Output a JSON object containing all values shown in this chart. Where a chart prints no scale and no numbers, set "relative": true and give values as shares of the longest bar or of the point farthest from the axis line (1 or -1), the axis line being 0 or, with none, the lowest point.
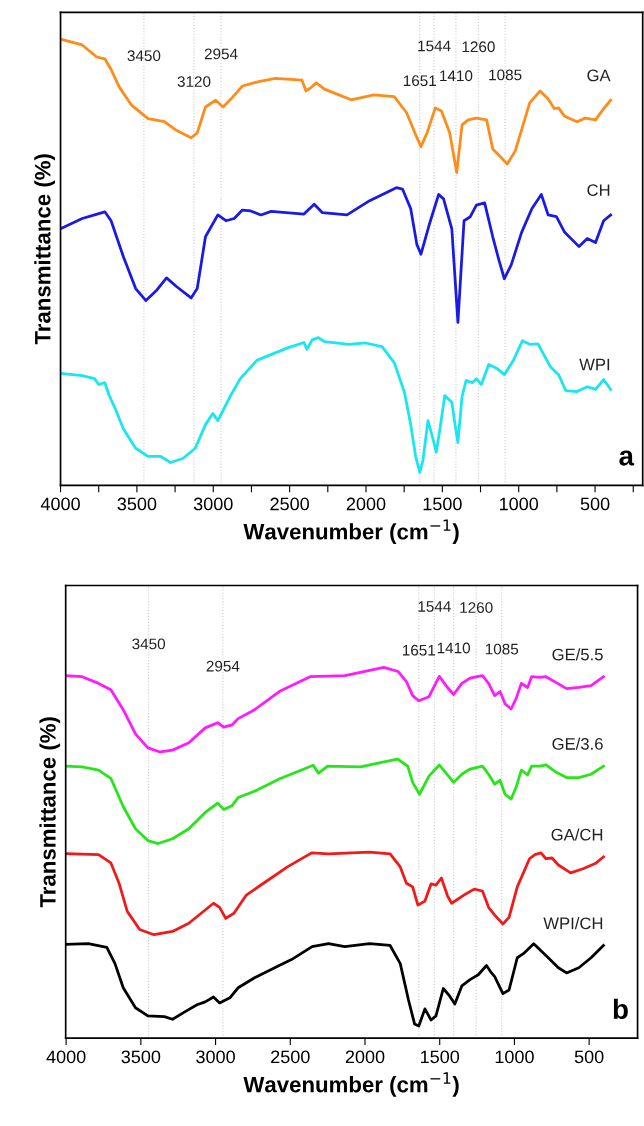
{
  "chart_data": [
    {
      "type": "line",
      "relative": true,
      "xlabel": "Wavenumber (cm$^{−1}$)",
      "ylabel": "Transmittance (%)",
      "tick_labels": "x",
      "xlim": [
        4000,
        188
      ],
      "xticks": [
        4000,
        {
          "value": 3750,
          "label": null
        },
        3500,
        {
          "value": 3250,
          "label": null
        },
        3000,
        {
          "value": 2750,
          "label": null
        },
        2500,
        {
          "value": 2250,
          "label": null
        },
        2000,
        {
          "value": 1750,
          "label": null
        },
        1500,
        {
          "value": 1250,
          "label": null
        },
        1000,
        {
          "value": 750,
          "label": null
        },
        500,
        {
          "value": 250,
          "label": null
        }
      ],
      "series": [
        {
          "name": "GA",
          "color": "#ff8c1a",
          "x": [
            4000,
            3858,
            3763,
            3710,
            3669,
            3616,
            3535,
            3427,
            3320,
            3239,
            3145,
            3105,
            3051,
            2984,
            2936,
            2876,
            2809,
            2702,
            2594,
            2419,
            2393,
            2366,
            2325,
            2272,
            2097,
            1949,
            1815,
            1734,
            1680,
            1640,
            1600,
            1546,
            1506,
            1452,
            1406,
            1371,
            1331,
            1277,
            1210,
            1170,
            1129,
            1075,
            1022,
            928,
            860,
            807,
            766,
            739,
            699,
            618,
            565,
            497,
            444,
            398
          ],
          "values": [
            1.0,
            0.987,
            0.96,
            0.956,
            0.932,
            0.893,
            0.852,
            0.822,
            0.815,
            0.795,
            0.779,
            0.79,
            0.848,
            0.863,
            0.848,
            0.869,
            0.895,
            0.905,
            0.912,
            0.908,
            0.884,
            0.89,
            0.902,
            0.888,
            0.864,
            0.875,
            0.871,
            0.835,
            0.79,
            0.759,
            0.79,
            0.846,
            0.839,
            0.79,
            0.701,
            0.808,
            0.819,
            0.823,
            0.819,
            0.754,
            0.74,
            0.72,
            0.75,
            0.857,
            0.884,
            0.866,
            0.844,
            0.846,
            0.827,
            0.815,
            0.823,
            0.819,
            0.844,
            0.863
          ]
        },
        {
          "name": "CH",
          "color": "#1a1ae6",
          "x": [
            4000,
            3858,
            3777,
            3710,
            3669,
            3589,
            3508,
            3441,
            3374,
            3306,
            3239,
            3145,
            3105,
            3051,
            2970,
            2917,
            2863,
            2809,
            2755,
            2688,
            2621,
            2406,
            2339,
            2285,
            2124,
            1976,
            1801,
            1761,
            1707,
            1667,
            1640,
            1586,
            1524,
            1492,
            1438,
            1398,
            1358,
            1317,
            1277,
            1223,
            1170,
            1129,
            1094,
            1049,
            981,
            914,
            852,
            807,
            753,
            699,
            605,
            551,
            497,
            444,
            398
          ],
          "values": [
            0.575,
            0.598,
            0.606,
            0.613,
            0.593,
            0.513,
            0.441,
            0.414,
            0.436,
            0.465,
            0.445,
            0.42,
            0.441,
            0.557,
            0.606,
            0.593,
            0.598,
            0.617,
            0.615,
            0.606,
            0.614,
            0.608,
            0.63,
            0.611,
            0.606,
            0.638,
            0.667,
            0.664,
            0.62,
            0.54,
            0.518,
            0.584,
            0.652,
            0.642,
            0.575,
            0.365,
            0.593,
            0.602,
            0.628,
            0.633,
            0.557,
            0.504,
            0.463,
            0.494,
            0.567,
            0.62,
            0.652,
            0.606,
            0.602,
            0.567,
            0.535,
            0.553,
            0.544,
            0.593,
            0.606
          ]
        },
        {
          "name": "WPI",
          "color": "#1ae6f0",
          "x": [
            4000,
            3858,
            3777,
            3750,
            3710,
            3683,
            3642,
            3589,
            3508,
            3427,
            3347,
            3280,
            3199,
            3118,
            3051,
            3003,
            2970,
            2890,
            2823,
            2715,
            2513,
            2406,
            2387,
            2352,
            2312,
            2272,
            2111,
            2003,
            1895,
            1815,
            1748,
            1707,
            1675,
            1648,
            1627,
            1594,
            1559,
            1540,
            1519,
            1484,
            1438,
            1417,
            1398,
            1371,
            1344,
            1304,
            1277,
            1245,
            1196,
            1143,
            1094,
            1035,
            976,
            928,
            874,
            793,
            739,
            691,
            618,
            551,
            497,
            444,
            398
          ],
          "values": [
            0.251,
            0.246,
            0.239,
            0.226,
            0.23,
            0.203,
            0.172,
            0.127,
            0.083,
            0.065,
            0.065,
            0.051,
            0.06,
            0.083,
            0.136,
            0.161,
            0.145,
            0.199,
            0.239,
            0.28,
            0.308,
            0.32,
            0.305,
            0.326,
            0.331,
            0.322,
            0.316,
            0.319,
            0.311,
            0.275,
            0.208,
            0.136,
            0.065,
            0.029,
            0.056,
            0.145,
            0.101,
            0.074,
            0.119,
            0.201,
            0.186,
            0.136,
            0.096,
            0.199,
            0.235,
            0.23,
            0.239,
            0.226,
            0.271,
            0.262,
            0.248,
            0.28,
            0.324,
            0.316,
            0.317,
            0.266,
            0.248,
            0.212,
            0.21,
            0.221,
            0.215,
            0.237,
            0.215
          ]
        }
      ],
      "ref_lines": [
        {
          "axis": "x",
          "value": 3454,
          "color": "#cccccc",
          "line_style": "dotted"
        },
        {
          "axis": "x",
          "value": 3126,
          "color": "#cccccc",
          "line_style": "dotted"
        },
        {
          "axis": "x",
          "value": 2949,
          "color": "#cccccc",
          "line_style": "dotted"
        },
        {
          "axis": "x",
          "value": 1648,
          "color": "#cccccc",
          "line_style": "dotted"
        },
        {
          "axis": "x",
          "value": 1554,
          "color": "#cccccc",
          "line_style": "dotted"
        },
        {
          "axis": "x",
          "value": 1411,
          "color": "#cccccc",
          "line_style": "dotted"
        },
        {
          "axis": "x",
          "value": 1264,
          "color": "#cccccc",
          "line_style": "dotted"
        },
        {
          "axis": "x",
          "value": 1089,
          "color": "#cccccc",
          "line_style": "dotted"
        }
      ],
      "annotations": [
        {
          "text": "3450",
          "x": 3454,
          "y": 0.96
        },
        {
          "text": "3120",
          "x": 3126,
          "y": 0.902
        },
        {
          "text": "2954",
          "x": 2949,
          "y": 0.964
        },
        {
          "text": "1651",
          "x": 1648,
          "y": 0.904
        },
        {
          "text": "1544",
          "x": 1554,
          "y": 0.982
        },
        {
          "text": "1410",
          "x": 1411,
          "y": 0.915
        },
        {
          "text": "1260",
          "x": 1264,
          "y": 0.98
        },
        {
          "text": "1085",
          "x": 1089,
          "y": 0.917
        },
        "a"
      ]
    },
    {
      "type": "line",
      "relative": true,
      "xlabel": "Wavenumber (cm$^{−1}$)",
      "ylabel": "Transmittance (%)",
      "tick_labels": "x",
      "xlim": [
        4003,
        176
      ],
      "xticks": [
        4000,
        3500,
        3000,
        2500,
        2000,
        1500,
        1000,
        500
      ],
      "series": [
        {
          "name": "GE/5.5",
          "color": "#ff1aff",
          "x": [
            4003,
            3893,
            3783,
            3701,
            3618,
            3536,
            3453,
            3371,
            3288,
            3179,
            3069,
            2986,
            2945,
            2890,
            2849,
            2739,
            2574,
            2368,
            2135,
            1874,
            1778,
            1723,
            1681,
            1640,
            1572,
            1503,
            1448,
            1407,
            1352,
            1297,
            1214,
            1173,
            1132,
            1096,
            1063,
            1022,
            987,
            954,
            912,
            885,
            830,
            789,
            720,
            651,
            569,
            487,
            404
          ],
          "values": [
            0.978,
            0.975,
            0.957,
            0.94,
            0.886,
            0.821,
            0.783,
            0.772,
            0.777,
            0.797,
            0.837,
            0.851,
            0.839,
            0.845,
            0.862,
            0.886,
            0.935,
            0.975,
            0.978,
            1.0,
            0.989,
            0.962,
            0.924,
            0.91,
            0.921,
            0.976,
            0.946,
            0.927,
            0.957,
            0.971,
            0.978,
            0.957,
            0.924,
            0.935,
            0.902,
            0.888,
            0.918,
            0.957,
            0.946,
            0.975,
            0.973,
            0.975,
            0.959,
            0.943,
            0.946,
            0.951,
            0.975
          ]
        },
        {
          "name": "GE/3.6",
          "color": "#26e61a",
          "x": [
            4003,
            3893,
            3783,
            3701,
            3618,
            3536,
            3453,
            3384,
            3288,
            3179,
            3069,
            2986,
            2945,
            2890,
            2849,
            2739,
            2574,
            2346,
            2311,
            2250,
            2030,
            1783,
            1714,
            1681,
            1635,
            1572,
            1503,
            1448,
            1407,
            1352,
            1297,
            1214,
            1173,
            1132,
            1096,
            1063,
            1022,
            987,
            954,
            912,
            885,
            830,
            789,
            720,
            651,
            569,
            487,
            404
          ],
          "values": [
            0.734,
            0.732,
            0.723,
            0.701,
            0.625,
            0.565,
            0.533,
            0.525,
            0.538,
            0.565,
            0.609,
            0.634,
            0.617,
            0.627,
            0.649,
            0.666,
            0.699,
            0.736,
            0.715,
            0.734,
            0.732,
            0.753,
            0.734,
            0.69,
            0.658,
            0.707,
            0.737,
            0.71,
            0.69,
            0.712,
            0.726,
            0.734,
            0.712,
            0.685,
            0.696,
            0.658,
            0.645,
            0.679,
            0.723,
            0.71,
            0.734,
            0.734,
            0.737,
            0.717,
            0.703,
            0.703,
            0.712,
            0.734
          ]
        },
        {
          "name": "GA/CH",
          "color": "#f01a1a",
          "x": [
            4003,
            3783,
            3701,
            3646,
            3591,
            3508,
            3412,
            3288,
            3179,
            3096,
            3014,
            2973,
            2932,
            2877,
            2794,
            2657,
            2519,
            2395,
            2354,
            2244,
            1970,
            1832,
            1764,
            1723,
            1681,
            1646,
            1599,
            1558,
            1525,
            1489,
            1448,
            1420,
            1338,
            1269,
            1214,
            1173,
            1132,
            1077,
            1036,
            981,
            899,
            863,
            822,
            789,
            748,
            706,
            624,
            541,
            459,
            404
          ],
          "values": [
            0.498,
            0.495,
            0.473,
            0.418,
            0.342,
            0.293,
            0.279,
            0.288,
            0.31,
            0.337,
            0.364,
            0.353,
            0.323,
            0.337,
            0.386,
            0.424,
            0.462,
            0.491,
            0.5,
            0.497,
            0.502,
            0.497,
            0.462,
            0.418,
            0.408,
            0.359,
            0.37,
            0.416,
            0.413,
            0.432,
            0.384,
            0.364,
            0.386,
            0.402,
            0.397,
            0.353,
            0.332,
            0.308,
            0.326,
            0.408,
            0.484,
            0.495,
            0.5,
            0.484,
            0.486,
            0.467,
            0.446,
            0.457,
            0.471,
            0.489
          ]
        },
        {
          "name": "WPI/CH",
          "color": "#000000",
          "x": [
            4003,
            3852,
            3728,
            3673,
            3618,
            3536,
            3453,
            3343,
            3288,
            3206,
            3124,
            3069,
            3014,
            2973,
            2904,
            2849,
            2739,
            2574,
            2492,
            2354,
            2244,
            2135,
            1970,
            1832,
            1764,
            1709,
            1668,
            1640,
            1599,
            1558,
            1525,
            1476,
            1434,
            1399,
            1352,
            1297,
            1242,
            1187,
            1159,
            1132,
            1077,
            1036,
            981,
            940,
            871,
            789,
            706,
            651,
            569,
            487,
            404
          ],
          "values": [
            0.253,
            0.255,
            0.245,
            0.201,
            0.136,
            0.082,
            0.06,
            0.058,
            0.051,
            0.071,
            0.09,
            0.098,
            0.111,
            0.095,
            0.109,
            0.136,
            0.163,
            0.196,
            0.212,
            0.247,
            0.255,
            0.247,
            0.255,
            0.25,
            0.201,
            0.103,
            0.038,
            0.033,
            0.079,
            0.049,
            0.06,
            0.134,
            0.114,
            0.092,
            0.141,
            0.158,
            0.171,
            0.196,
            0.179,
            0.166,
            0.12,
            0.13,
            0.217,
            0.228,
            0.255,
            0.223,
            0.19,
            0.176,
            0.19,
            0.217,
            0.25
          ]
        }
      ],
      "ref_lines": [
        {
          "axis": "x",
          "value": 3448,
          "color": "#cccccc",
          "line_style": "dotted"
        },
        {
          "axis": "x",
          "value": 2951,
          "color": "#cccccc",
          "line_style": "dotted"
        },
        {
          "axis": "x",
          "value": 1640,
          "color": "#cccccc",
          "line_style": "dotted"
        },
        {
          "axis": "x",
          "value": 1536,
          "color": "#cccccc",
          "line_style": "dotted"
        },
        {
          "axis": "x",
          "value": 1407,
          "color": "#cccccc",
          "line_style": "dotted"
        },
        {
          "axis": "x",
          "value": 1256,
          "color": "#cccccc",
          "line_style": "dotted"
        },
        {
          "axis": "x",
          "value": 1085,
          "color": "#cccccc",
          "line_style": "dotted"
        }
      ],
      "annotations": [
        {
          "text": "3450",
          "x": 3448,
          "y": 1.06
        },
        {
          "text": "2954",
          "x": 2951,
          "y": 1.0
        },
        {
          "text": "1651",
          "x": 1640,
          "y": 1.043
        },
        {
          "text": "1544",
          "x": 1536,
          "y": 1.161
        },
        {
          "text": "1410",
          "x": 1407,
          "y": 1.049
        },
        {
          "text": "1260",
          "x": 1256,
          "y": 1.158
        },
        {
          "text": "1085",
          "x": 1085,
          "y": 1.046
        },
        "b"
      ]
    }
  ]
}
